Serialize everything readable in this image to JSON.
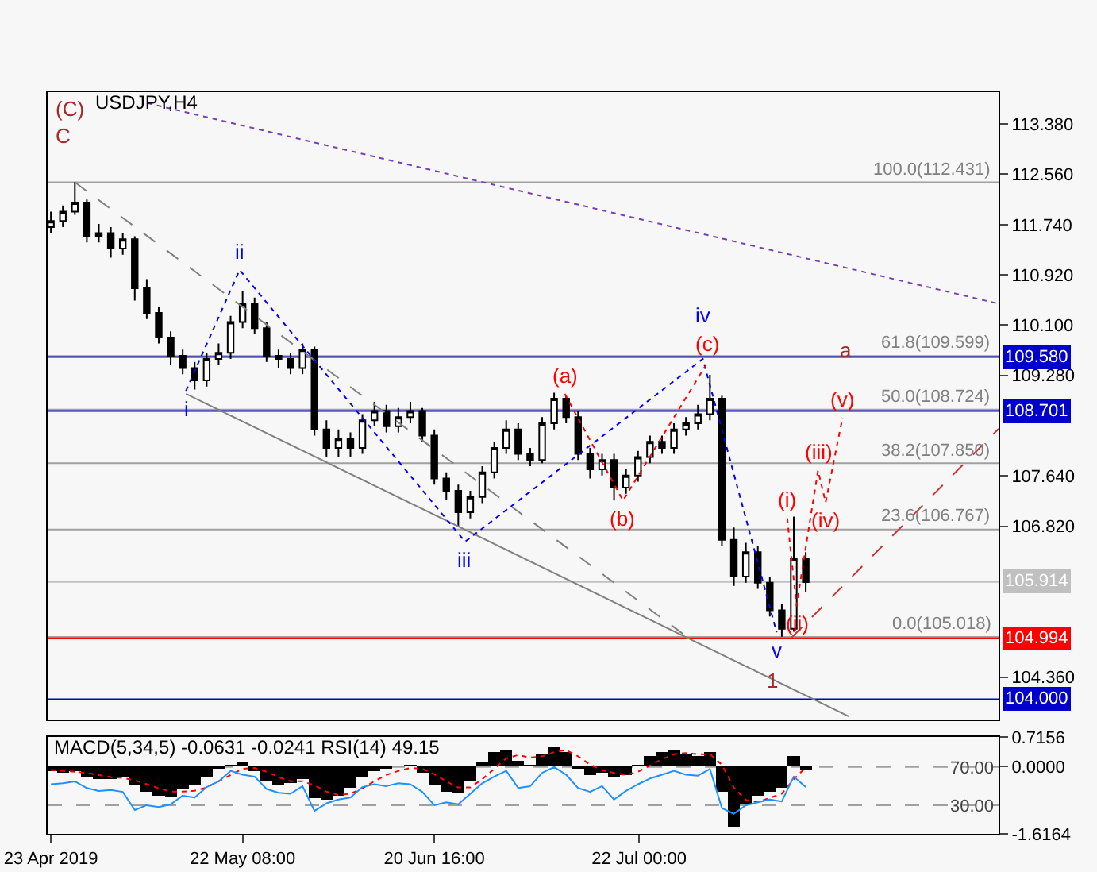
{
  "chart_data": [
    {
      "type": "candlestick",
      "title": "USDJPY,H4",
      "color": "#000000",
      "tick_labels": "y",
      "xlim": [
        "2019-04-22T12:00",
        "2019-09-15T00:00"
      ],
      "ylim": [
        103.67,
        113.9
      ],
      "yticks": [
        {
          "value": 113.38,
          "label": "113.380"
        },
        {
          "value": 112.56,
          "label": "112.560"
        },
        {
          "value": 111.74,
          "label": "111.740"
        },
        {
          "value": 110.92,
          "label": "110.920"
        },
        {
          "value": 110.1,
          "label": "110.100"
        },
        {
          "value": 109.28,
          "label": "109.280"
        },
        {
          "value": 107.64,
          "label": "107.640"
        },
        {
          "value": 106.82,
          "label": "106.820"
        },
        {
          "value": 104.36,
          "label": "104.360"
        }
      ],
      "x": [
        "2019-04-23T00:00",
        "2019-04-24T20:00",
        "2019-04-26T16:00",
        "2019-04-28T12:00",
        "2019-04-30T08:00",
        "2019-05-02T04:00",
        "2019-05-04T00:00",
        "2019-05-05T20:00",
        "2019-05-07T16:00",
        "2019-05-09T12:00",
        "2019-05-11T08:00",
        "2019-05-13T04:00",
        "2019-05-15T00:00",
        "2019-05-16T20:00",
        "2019-05-18T16:00",
        "2019-05-20T12:00",
        "2019-05-22T08:00",
        "2019-05-24T04:00",
        "2019-05-26T00:00",
        "2019-05-27T20:00",
        "2019-05-29T16:00",
        "2019-05-31T12:00",
        "2019-06-02T08:00",
        "2019-06-04T04:00",
        "2019-06-06T00:00",
        "2019-06-07T20:00",
        "2019-06-09T16:00",
        "2019-06-11T12:00",
        "2019-06-13T08:00",
        "2019-06-15T04:00",
        "2019-06-17T00:00",
        "2019-06-18T20:00",
        "2019-06-20T16:00",
        "2019-06-22T12:00",
        "2019-06-24T08:00",
        "2019-06-26T04:00",
        "2019-06-28T00:00",
        "2019-06-29T20:00",
        "2019-07-01T16:00",
        "2019-07-03T12:00",
        "2019-07-05T08:00",
        "2019-07-07T04:00",
        "2019-07-09T00:00",
        "2019-07-10T20:00",
        "2019-07-12T16:00",
        "2019-07-14T12:00",
        "2019-07-16T08:00",
        "2019-07-18T04:00",
        "2019-07-20T00:00",
        "2019-07-21T20:00",
        "2019-07-23T16:00",
        "2019-07-25T12:00",
        "2019-07-27T08:00",
        "2019-07-29T04:00",
        "2019-07-31T00:00",
        "2019-08-01T20:00",
        "2019-08-03T16:00",
        "2019-08-05T12:00",
        "2019-08-07T08:00",
        "2019-08-09T04:00",
        "2019-08-11T00:00",
        "2019-08-12T20:00",
        "2019-08-14T16:00",
        "2019-08-16T12:00"
      ],
      "ohlc": [
        [
          111.7,
          111.95,
          111.6,
          111.8
        ],
        [
          111.8,
          112.05,
          111.7,
          111.95
        ],
        [
          111.95,
          112.43,
          111.9,
          112.1
        ],
        [
          112.1,
          112.15,
          111.45,
          111.55
        ],
        [
          111.55,
          111.75,
          111.45,
          111.6
        ],
        [
          111.6,
          111.7,
          111.2,
          111.35
        ],
        [
          111.35,
          111.6,
          111.25,
          111.5
        ],
        [
          111.5,
          111.55,
          110.5,
          110.7
        ],
        [
          110.7,
          110.85,
          110.2,
          110.3
        ],
        [
          110.3,
          110.4,
          109.8,
          109.9
        ],
        [
          109.9,
          110.0,
          109.45,
          109.6
        ],
        [
          109.6,
          109.7,
          109.3,
          109.4
        ],
        [
          109.4,
          109.5,
          109.05,
          109.2
        ],
        [
          109.2,
          109.65,
          109.1,
          109.55
        ],
        [
          109.55,
          109.8,
          109.45,
          109.65
        ],
        [
          109.65,
          110.25,
          109.55,
          110.15
        ],
        [
          110.15,
          110.65,
          110.05,
          110.45
        ],
        [
          110.45,
          110.55,
          109.95,
          110.05
        ],
        [
          110.05,
          110.15,
          109.5,
          109.6
        ],
        [
          109.6,
          109.7,
          109.4,
          109.55
        ],
        [
          109.55,
          109.65,
          109.3,
          109.4
        ],
        [
          109.4,
          109.8,
          109.3,
          109.7
        ],
        [
          109.7,
          109.75,
          108.3,
          108.4
        ],
        [
          108.4,
          108.55,
          107.95,
          108.1
        ],
        [
          108.1,
          108.4,
          107.95,
          108.25
        ],
        [
          108.25,
          108.35,
          107.95,
          108.1
        ],
        [
          108.1,
          108.65,
          108.0,
          108.55
        ],
        [
          108.55,
          108.85,
          108.45,
          108.7
        ],
        [
          108.7,
          108.8,
          108.35,
          108.45
        ],
        [
          108.45,
          108.75,
          108.35,
          108.6
        ],
        [
          108.6,
          108.85,
          108.5,
          108.7
        ],
        [
          108.7,
          108.75,
          108.2,
          108.3
        ],
        [
          108.3,
          108.4,
          107.5,
          107.6
        ],
        [
          107.6,
          107.7,
          107.25,
          107.4
        ],
        [
          107.4,
          107.5,
          106.82,
          107.05
        ],
        [
          107.05,
          107.4,
          106.95,
          107.3
        ],
        [
          107.3,
          107.8,
          107.2,
          107.7
        ],
        [
          107.7,
          108.2,
          107.6,
          108.1
        ],
        [
          108.1,
          108.55,
          108.0,
          108.4
        ],
        [
          108.4,
          108.5,
          107.9,
          108.0
        ],
        [
          108.0,
          108.1,
          107.8,
          107.9
        ],
        [
          107.9,
          108.6,
          107.85,
          108.5
        ],
        [
          108.5,
          109.0,
          108.4,
          108.9
        ],
        [
          108.9,
          108.95,
          108.5,
          108.6
        ],
        [
          108.6,
          108.7,
          107.9,
          108.0
        ],
        [
          108.0,
          108.1,
          107.6,
          107.75
        ],
        [
          107.75,
          108.0,
          107.65,
          107.9
        ],
        [
          107.9,
          108.0,
          107.24,
          107.45
        ],
        [
          107.45,
          107.75,
          107.35,
          107.65
        ],
        [
          107.65,
          108.05,
          107.55,
          107.95
        ],
        [
          107.95,
          108.3,
          107.85,
          108.2
        ],
        [
          108.2,
          108.3,
          108.0,
          108.1
        ],
        [
          108.1,
          108.5,
          108.0,
          108.4
        ],
        [
          108.4,
          108.6,
          108.3,
          108.5
        ],
        [
          108.5,
          108.8,
          108.4,
          108.65
        ],
        [
          108.65,
          109.29,
          108.55,
          108.9
        ],
        [
          108.9,
          108.95,
          106.5,
          106.6
        ],
        [
          106.6,
          106.8,
          105.85,
          106.0
        ],
        [
          106.0,
          106.55,
          105.9,
          106.4
        ],
        [
          106.4,
          106.5,
          105.8,
          105.9
        ],
        [
          105.9,
          106.0,
          105.35,
          105.45
        ],
        [
          105.45,
          105.55,
          105.02,
          105.15
        ],
        [
          105.15,
          106.98,
          105.1,
          106.3
        ],
        [
          106.3,
          106.4,
          105.75,
          105.91
        ]
      ],
      "series": [
        {
          "type": "line",
          "color": "#7b3fb5",
          "line_style": "dotted",
          "x": [
            "2019-05-07T19:00",
            "2019-09-15T00:00"
          ],
          "values": [
            113.72,
            110.45
          ]
        },
        {
          "type": "line",
          "color": "#808080",
          "line_style": "dashed",
          "x": [
            "2019-04-26T16:00",
            "2019-07-29T10:00"
          ],
          "values": [
            112.43,
            105.01
          ]
        },
        {
          "type": "line",
          "color": "#808080",
          "line_style": "solid",
          "x": [
            "2019-05-13T16:00",
            "2019-08-23T02:00"
          ],
          "values": [
            108.98,
            103.72
          ]
        },
        {
          "type": "line",
          "color": "#0000ff",
          "line_style": "dotted",
          "x": [
            "2019-05-13T16:00",
            "2019-05-21T21:00",
            "2019-06-25T09:00",
            "2019-07-31T18:00",
            "2019-08-12T01:00"
          ],
          "values": [
            109.03,
            111.0,
            106.57,
            109.55,
            105.09
          ],
          "value_labels": [
            "i",
            "ii",
            "iii",
            "iv",
            "v"
          ]
        },
        {
          "type": "line",
          "color": "#ff0000",
          "line_style": "dotted",
          "x": [
            "2019-07-10T15:00",
            "2019-07-19T13:00",
            "2019-08-01T11:00"
          ],
          "values": [
            108.98,
            107.24,
            109.49
          ],
          "value_labels": [
            "(a)",
            "(b)",
            "(c)"
          ]
        },
        {
          "type": "line",
          "color": "#ff0000",
          "line_style": "dotted",
          "x": [
            "2019-08-13T16:00",
            "2019-08-15T02:00",
            "2019-08-18T09:00",
            "2019-08-19T13:00",
            "2019-08-22T03:00"
          ],
          "values": [
            106.95,
            105.53,
            107.73,
            107.21,
            108.59
          ],
          "value_labels": [
            "(i)",
            "(ii)",
            "(iii)",
            "(iv)",
            "(v)"
          ]
        },
        {
          "type": "line",
          "color": "#cc3333",
          "line_style": "dashed",
          "x": [
            "2019-08-14T09:00",
            "2019-09-15T00:00"
          ],
          "values": [
            105.01,
            108.41
          ]
        }
      ],
      "annotations": [
        {
          "text": "a",
          "x": "2019-08-22T14:00",
          "y": 109.7
        },
        {
          "text": "1",
          "x": "2019-08-11T08:00",
          "y": 104.31
        },
        "(C)",
        "C"
      ],
      "ref_lines": [
        {
          "axis": "y",
          "value": 112.431,
          "label": "100.0(112.431)",
          "color": "#a0a0a0"
        },
        {
          "axis": "y",
          "value": 109.599,
          "label": "61.8(109.599)",
          "color": "#a0a0a0"
        },
        {
          "axis": "y",
          "value": 108.724,
          "label": "50.0(108.724)",
          "color": "#a0a0a0"
        },
        {
          "axis": "y",
          "value": 107.85,
          "label": "38.2(107.850)",
          "color": "#a0a0a0"
        },
        {
          "axis": "y",
          "value": 106.767,
          "label": "23.6(106.767)",
          "color": "#a0a0a0"
        },
        {
          "axis": "y",
          "value": 105.018,
          "label": "0.0(105.018)",
          "color": "#a0a0a0"
        },
        {
          "axis": "y",
          "value": 109.58,
          "label": "109.580",
          "color": "#0000cd"
        },
        {
          "axis": "y",
          "value": 108.701,
          "label": "108.701",
          "color": "#0000cd"
        },
        {
          "axis": "y",
          "value": 105.914,
          "label": "105.914",
          "color": "#c0c0c0"
        },
        {
          "axis": "y",
          "value": 104.994,
          "label": "104.994",
          "color": "#ff0000"
        },
        {
          "axis": "y",
          "value": 104.0,
          "label": "104.000",
          "color": "#0000cd"
        }
      ]
    },
    {
      "type": "bar",
      "title": "MACD(5,34,5) -0.0631 -0.0241 RSI(14) 49.15",
      "xlim": [
        "2019-04-22T12:00",
        "2019-09-15T00:00"
      ],
      "xticks": [
        {
          "value": "2019-04-23T00:00",
          "label": "23 Apr 2019"
        },
        {
          "value": "2019-05-22T08:00",
          "label": "22 May 08:00"
        },
        {
          "value": "2019-06-20T16:00",
          "label": "20 Jun 16:00"
        },
        {
          "value": "2019-07-22T00:00",
          "label": "22 Jul 00:00"
        }
      ],
      "ylim": [
        -1.6164,
        0.7156
      ],
      "yticks": [
        {
          "value": 0.7156,
          "label": "0.7156"
        },
        {
          "value": 0,
          "label": "0.0000"
        },
        {
          "value": -1.6164,
          "label": "-1.6164"
        }
      ],
      "y2lim": [
        0,
        101.5
      ],
      "y2ticks": [
        {
          "value": 70,
          "label": "70.00"
        },
        {
          "value": 30,
          "label": "30.00"
        }
      ],
      "ref_lines": [
        {
          "axis": "y2",
          "value": 70,
          "color": "#a0a0a0",
          "line_style": "dashed"
        },
        {
          "axis": "y2",
          "value": 30,
          "color": "#a0a0a0",
          "line_style": "dashed"
        }
      ],
      "x": [
        "2019-04-23T00:00",
        "2019-04-24T20:00",
        "2019-04-26T16:00",
        "2019-04-28T12:00",
        "2019-04-30T08:00",
        "2019-05-02T04:00",
        "2019-05-04T00:00",
        "2019-05-05T20:00",
        "2019-05-07T16:00",
        "2019-05-09T12:00",
        "2019-05-11T08:00",
        "2019-05-13T04:00",
        "2019-05-15T00:00",
        "2019-05-16T20:00",
        "2019-05-18T16:00",
        "2019-05-20T12:00",
        "2019-05-22T08:00",
        "2019-05-24T04:00",
        "2019-05-26T00:00",
        "2019-05-27T20:00",
        "2019-05-29T16:00",
        "2019-05-31T12:00",
        "2019-06-02T08:00",
        "2019-06-04T04:00",
        "2019-06-06T00:00",
        "2019-06-07T20:00",
        "2019-06-09T16:00",
        "2019-06-11T12:00",
        "2019-06-13T08:00",
        "2019-06-15T04:00",
        "2019-06-17T00:00",
        "2019-06-18T20:00",
        "2019-06-20T16:00",
        "2019-06-22T12:00",
        "2019-06-24T08:00",
        "2019-06-26T04:00",
        "2019-06-28T00:00",
        "2019-06-29T20:00",
        "2019-07-01T16:00",
        "2019-07-03T12:00",
        "2019-07-05T08:00",
        "2019-07-07T04:00",
        "2019-07-09T00:00",
        "2019-07-10T20:00",
        "2019-07-12T16:00",
        "2019-07-14T12:00",
        "2019-07-16T08:00",
        "2019-07-18T04:00",
        "2019-07-20T00:00",
        "2019-07-21T20:00",
        "2019-07-23T16:00",
        "2019-07-25T12:00",
        "2019-07-27T08:00",
        "2019-07-29T04:00",
        "2019-07-31T00:00",
        "2019-08-01T20:00",
        "2019-08-03T16:00",
        "2019-08-05T12:00",
        "2019-08-07T08:00",
        "2019-08-09T04:00",
        "2019-08-11T00:00",
        "2019-08-12T20:00",
        "2019-08-14T16:00",
        "2019-08-16T12:00"
      ],
      "series": [
        {
          "type": "bar",
          "color": "#000000",
          "values": [
            -0.1,
            -0.15,
            -0.1,
            -0.25,
            -0.3,
            -0.3,
            -0.25,
            -0.45,
            -0.6,
            -0.7,
            -0.72,
            -0.55,
            -0.45,
            -0.25,
            -0.05,
            0.05,
            0.1,
            -0.1,
            -0.35,
            -0.45,
            -0.4,
            -0.3,
            -0.75,
            -0.8,
            -0.7,
            -0.5,
            -0.25,
            -0.1,
            -0.05,
            0.02,
            0.05,
            -0.15,
            -0.45,
            -0.6,
            -0.65,
            -0.35,
            0.1,
            0.35,
            0.4,
            0.15,
            0.05,
            0.3,
            0.48,
            0.35,
            -0.05,
            -0.2,
            -0.15,
            -0.25,
            -0.2,
            0.05,
            0.25,
            0.35,
            0.4,
            0.3,
            0.25,
            0.35,
            -0.6,
            -1.45,
            -0.9,
            -0.7,
            -0.6,
            -0.5,
            0.25,
            -0.06
          ]
        },
        {
          "type": "line",
          "color": "#ff0000",
          "line_style": "dotted",
          "values": [
            -0.08,
            -0.1,
            -0.12,
            -0.15,
            -0.2,
            -0.25,
            -0.27,
            -0.33,
            -0.42,
            -0.52,
            -0.6,
            -0.6,
            -0.58,
            -0.5,
            -0.35,
            -0.2,
            -0.05,
            -0.03,
            -0.12,
            -0.25,
            -0.35,
            -0.35,
            -0.45,
            -0.6,
            -0.68,
            -0.65,
            -0.52,
            -0.35,
            -0.2,
            -0.1,
            -0.03,
            -0.05,
            -0.18,
            -0.35,
            -0.5,
            -0.5,
            -0.3,
            -0.05,
            0.2,
            0.28,
            0.22,
            0.25,
            0.35,
            0.4,
            0.25,
            0.05,
            -0.08,
            -0.15,
            -0.2,
            -0.12,
            0.03,
            0.18,
            0.3,
            0.33,
            0.3,
            0.3,
            0.05,
            -0.5,
            -0.8,
            -0.85,
            -0.75,
            -0.65,
            -0.3,
            -0.02
          ]
        },
        {
          "type": "line",
          "color": "#1e90ff",
          "axis": "y2",
          "values": [
            52,
            53,
            55,
            48,
            45,
            46,
            44,
            25,
            30,
            28,
            31,
            40,
            38,
            49,
            55,
            66,
            62,
            60,
            47,
            43,
            42,
            50,
            24,
            32,
            36,
            38,
            49,
            52,
            50,
            53,
            52,
            44,
            30,
            33,
            31,
            42,
            53,
            60,
            66,
            48,
            50,
            64,
            70,
            62,
            48,
            44,
            50,
            36,
            45,
            52,
            58,
            62,
            66,
            62,
            61,
            68,
            27,
            21,
            30,
            33,
            36,
            34,
            60,
            49
          ]
        }
      ]
    }
  ]
}
